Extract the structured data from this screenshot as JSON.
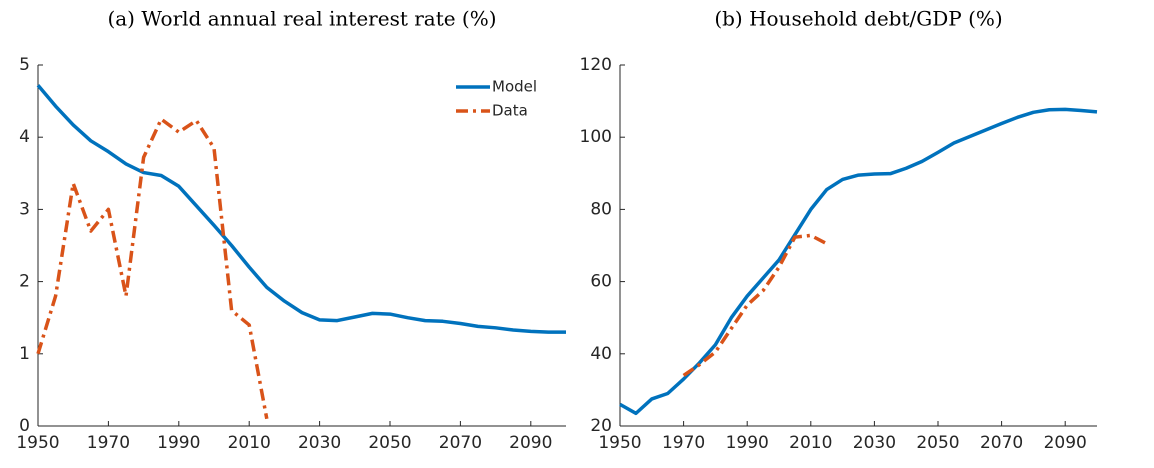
{
  "chart_data": [
    {
      "type": "line",
      "title": "(a) World annual real interest rate (%)",
      "xlim": [
        1950,
        2100
      ],
      "xticks": [
        1950,
        1970,
        1990,
        2010,
        2030,
        2050,
        2070,
        2090
      ],
      "ylim": [
        0,
        5
      ],
      "yticks": [
        0,
        1,
        2,
        3,
        4,
        5
      ],
      "grid": false,
      "legend": "upper right",
      "series": [
        {
          "name": "Model",
          "color": "#0072bd",
          "dash": "solid",
          "x": [
            1950,
            1955,
            1960,
            1965,
            1970,
            1975,
            1980,
            1985,
            1990,
            1995,
            2000,
            2005,
            2010,
            2015,
            2020,
            2025,
            2030,
            2035,
            2040,
            2045,
            2050,
            2055,
            2060,
            2065,
            2070,
            2075,
            2080,
            2085,
            2090,
            2095,
            2100
          ],
          "values": [
            4.72,
            4.43,
            4.17,
            3.95,
            3.8,
            3.63,
            3.51,
            3.47,
            3.32,
            3.05,
            2.78,
            2.5,
            2.2,
            1.92,
            1.73,
            1.57,
            1.47,
            1.46,
            1.51,
            1.56,
            1.55,
            1.5,
            1.46,
            1.45,
            1.42,
            1.38,
            1.36,
            1.33,
            1.31,
            1.3,
            1.3
          ]
        },
        {
          "name": "Data",
          "color": "#d95319",
          "dash": "dashdot",
          "x": [
            1950,
            1955,
            1960,
            1965,
            1970,
            1975,
            1980,
            1985,
            1990,
            1995,
            2000,
            2005,
            2010,
            2015
          ],
          "values": [
            1.0,
            1.8,
            3.36,
            2.7,
            3.0,
            1.8,
            3.72,
            4.25,
            4.07,
            4.23,
            3.85,
            1.6,
            1.4,
            0.1
          ]
        }
      ]
    },
    {
      "type": "line",
      "title": "(b) Household debt/GDP (%)",
      "xlim": [
        1950,
        2100
      ],
      "xticks": [
        1950,
        1970,
        1990,
        2010,
        2030,
        2050,
        2070,
        2090
      ],
      "ylim": [
        20,
        120
      ],
      "yticks": [
        20,
        40,
        60,
        80,
        100,
        120
      ],
      "grid": false,
      "series": [
        {
          "color": "#0072bd",
          "dash": "solid",
          "x": [
            1950,
            1955,
            1960,
            1965,
            1970,
            1975,
            1980,
            1985,
            1990,
            1995,
            2000,
            2005,
            2010,
            2015,
            2020,
            2025,
            2030,
            2035,
            2040,
            2045,
            2050,
            2055,
            2060,
            2065,
            2070,
            2075,
            2080,
            2085,
            2090,
            2095,
            2100
          ],
          "values": [
            26,
            23.5,
            27.5,
            29,
            33,
            37.5,
            42.5,
            50,
            56,
            61,
            66,
            73,
            80,
            85.5,
            88.3,
            89.5,
            89.8,
            89.9,
            91.4,
            93.3,
            95.8,
            98.4,
            100.2,
            102,
            103.8,
            105.5,
            106.9,
            107.6,
            107.7,
            107.4,
            107
          ]
        },
        {
          "color": "#d95319",
          "dash": "dashdot",
          "x": [
            1970,
            1975,
            1980,
            1985,
            1990,
            1995,
            2000,
            2005,
            2010,
            2015
          ],
          "values": [
            34,
            37,
            40.5,
            47,
            53.5,
            57.5,
            64,
            72.3,
            72.8,
            70.5
          ]
        }
      ]
    }
  ]
}
